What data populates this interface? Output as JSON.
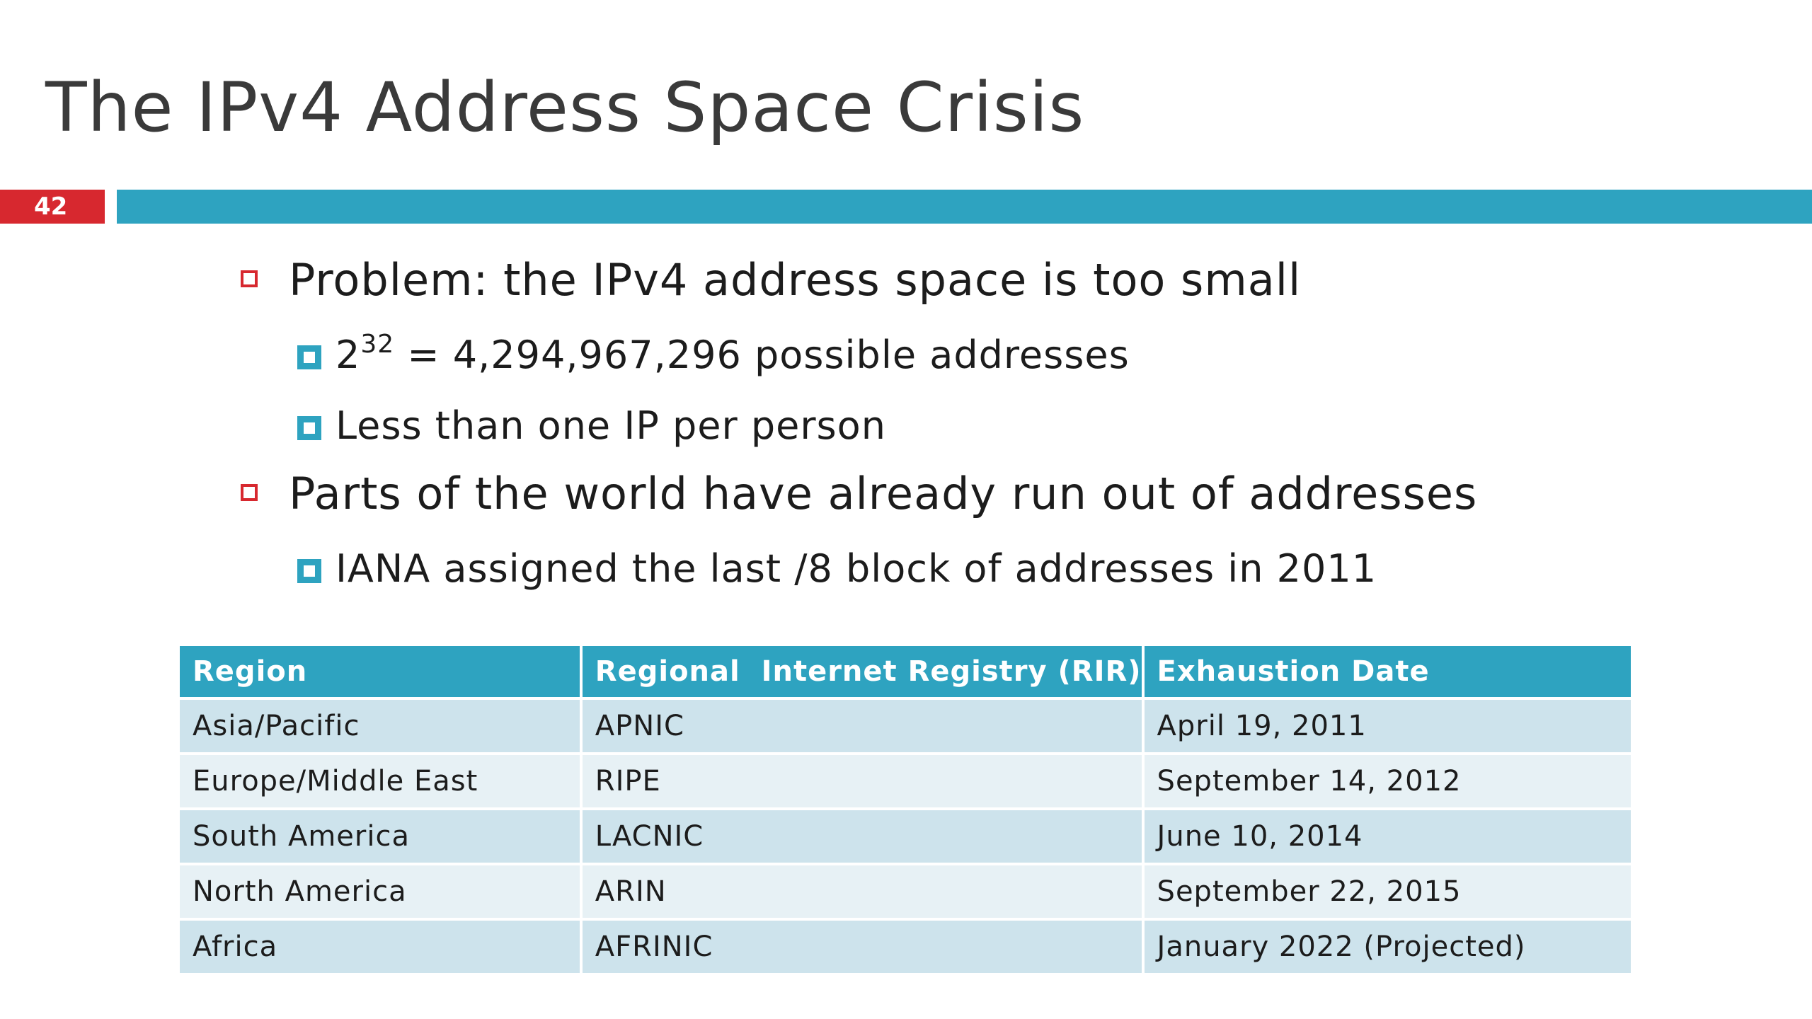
{
  "slide": {
    "title": "The IPv4 Address Space Crisis",
    "number": "42",
    "accent_color": "#2ea3c0",
    "number_color": "#d7282f"
  },
  "bullets": [
    {
      "text": "Problem: the IPv4 address space is too small",
      "subs": [
        {
          "base": "2",
          "exponent": "32",
          "rest": " = 4,294,967,296 possible addresses"
        },
        {
          "text": "Less than one IP per person"
        }
      ]
    },
    {
      "text": "Parts of the world have already run out of addresses",
      "subs": [
        {
          "text": "IANA assigned the last /8 block of addresses in 2011"
        }
      ]
    }
  ],
  "table": {
    "headers": [
      "Region",
      "Regional  Internet Registry (RIR)",
      "Exhaustion Date"
    ],
    "rows": [
      [
        "Asia/Pacific",
        "APNIC",
        "April 19, 2011"
      ],
      [
        "Europe/Middle East",
        "RIPE",
        "September 14, 2012"
      ],
      [
        "South America",
        "LACNIC",
        "June 10, 2014"
      ],
      [
        "North America",
        "ARIN",
        "September 22, 2015"
      ],
      [
        "Africa",
        "AFRINIC",
        "January 2022 (Projected)"
      ]
    ]
  }
}
